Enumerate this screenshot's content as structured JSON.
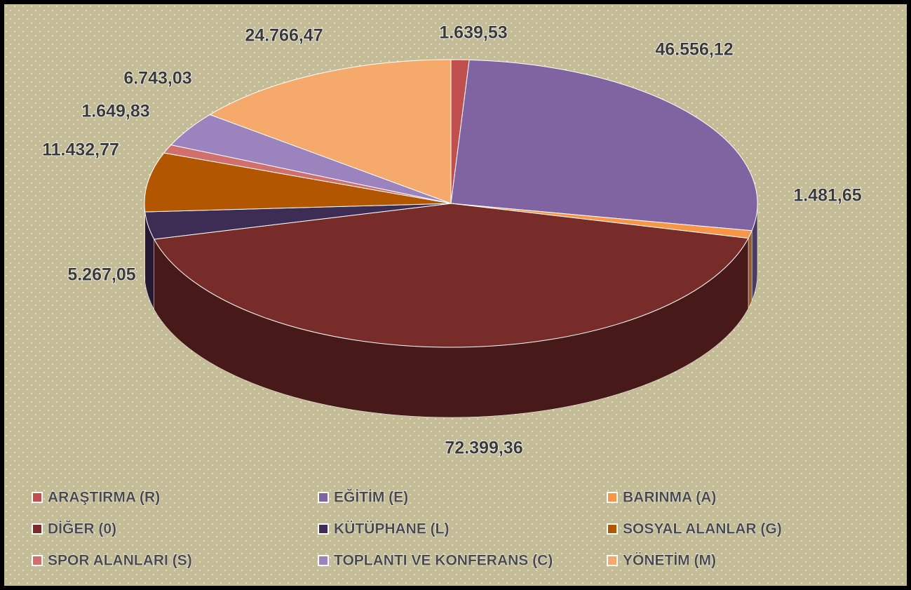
{
  "chart_data": {
    "type": "pie3d",
    "categories": [
      "ARAŞTIRMA (R)",
      "EĞİTİM (E)",
      "BARINMA (A)",
      "DİĞER (0)",
      "KÜTÜPHANE (L)",
      "SOSYAL ALANLAR (G)",
      "SPOR ALANLARI (S)",
      "TOPLANTI VE KONFERANS (C)",
      "YÖNETİM (M)"
    ],
    "values": [
      1639.53,
      46556.12,
      1481.65,
      72399.36,
      5267.05,
      11432.77,
      1649.83,
      6743.03,
      24766.47
    ],
    "value_labels": [
      "1.639,53",
      "46.556,12",
      "1.481,65",
      "72.399,36",
      "5.267,05",
      "11.432,77",
      "1.649,83",
      "6.743,03",
      "24.766,47"
    ],
    "colors": [
      "#c0504d",
      "#8064a2",
      "#f79646",
      "#772c2a",
      "#3d2c54",
      "#b35600",
      "#d06f6c",
      "#9b84be",
      "#f5a96b"
    ],
    "legend": "bottom"
  }
}
